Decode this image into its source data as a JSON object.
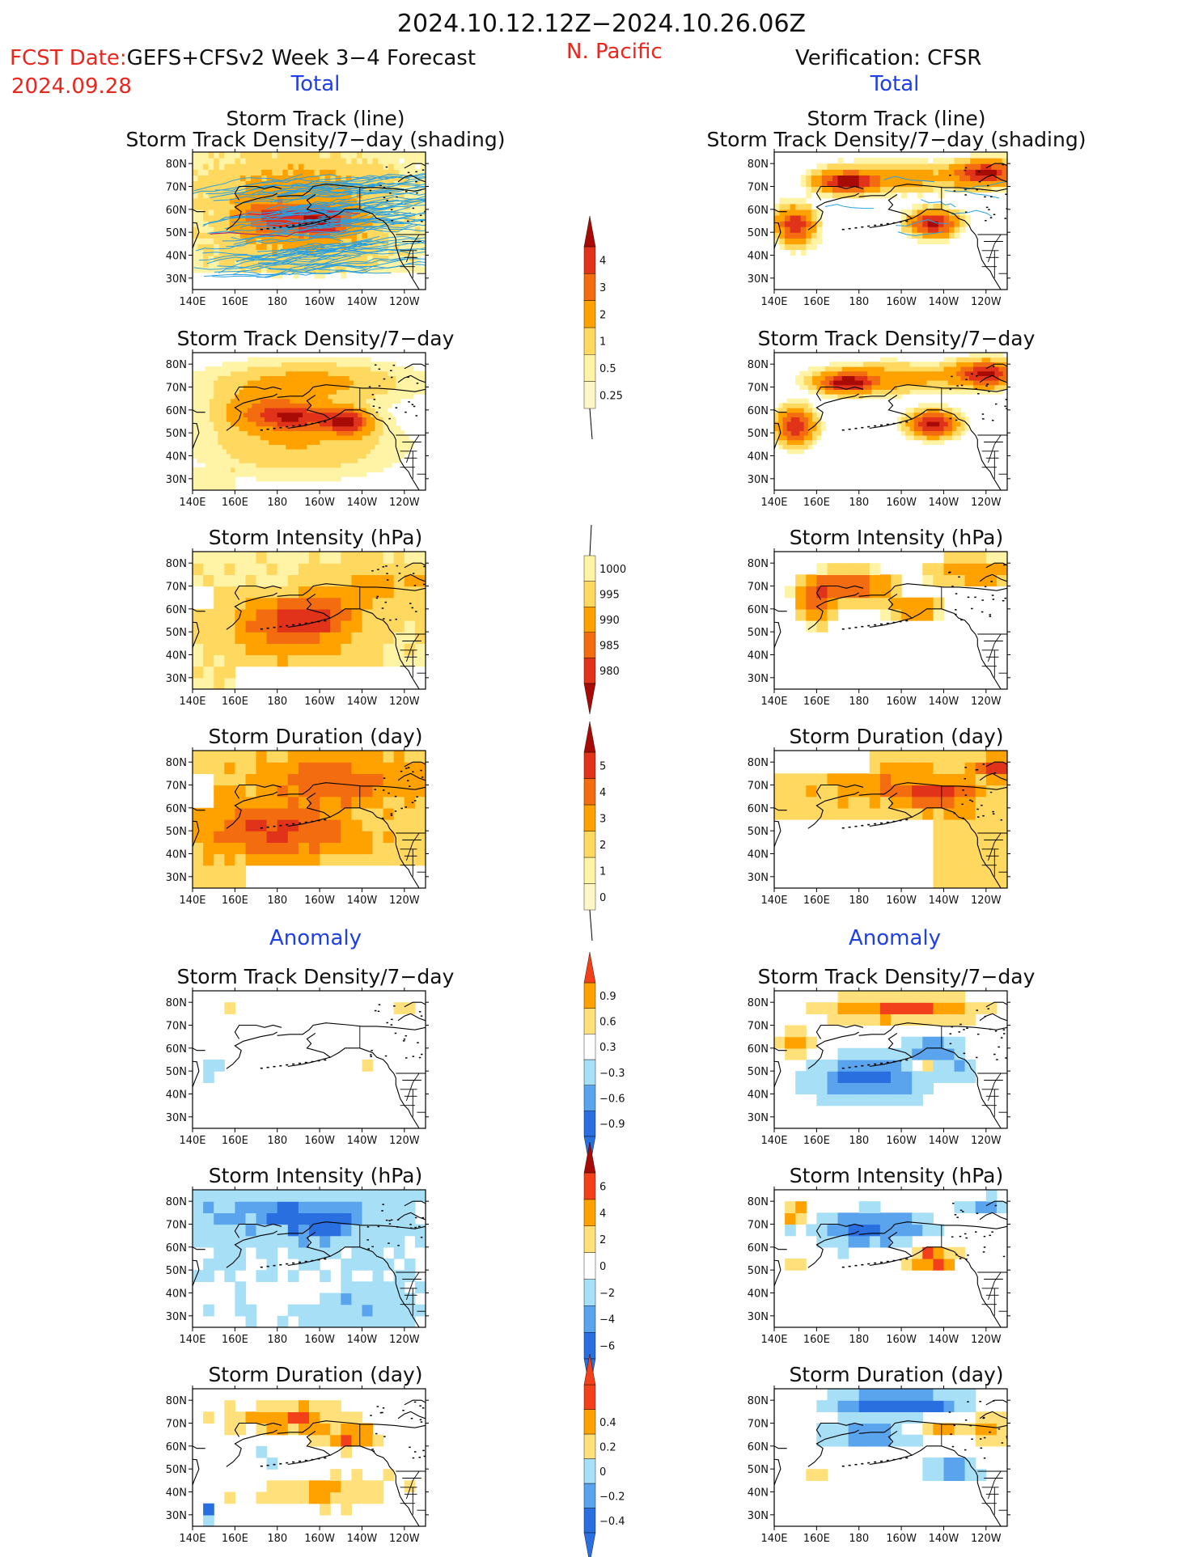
{
  "header": {
    "period": "2024.10.12.12Z−2024.10.26.06Z",
    "fcst_date_label": "FCST Date:",
    "fcst_product": "GEFS+CFSv2 Week 3−4 Forecast",
    "fcst_date": "2024.09.28",
    "region": "N. Pacific",
    "verification": "Verification: CFSR"
  },
  "sections": {
    "total_label": "Total",
    "anomaly_label": "Anomaly"
  },
  "panel_titles": {
    "track_line": "Storm Track (line)",
    "track_density_shading": "Storm Track Density/7−day (shading)",
    "track_density": "Storm Track Density/7−day",
    "intensity": "Storm Intensity (hPa)",
    "duration": "Storm Duration (day)"
  },
  "axes": {
    "x_ticks": [
      "140E",
      "160E",
      "180",
      "160W",
      "140W",
      "120W"
    ],
    "y_ticks": [
      "80N",
      "70N",
      "60N",
      "50N",
      "40N",
      "30N"
    ]
  },
  "colors": {
    "seq": [
      "#fff3a6",
      "#ffd860",
      "#ffa200",
      "#f36d10",
      "#e1321a",
      "#a80b05"
    ],
    "div": [
      "#2a6fe0",
      "#5aa4ee",
      "#a7e0f6",
      "#ffffff",
      "#ffe07a",
      "#ffa200",
      "#f2411a"
    ],
    "track_line": "#2aa0e0",
    "track_line_red": "#c2185b"
  },
  "colorbars": [
    {
      "name": "density-total",
      "levels": [
        "0.25",
        "0.5",
        "1",
        "2",
        "3",
        "4"
      ]
    },
    {
      "name": "intensity-total",
      "levels": [
        "1000",
        "995",
        "990",
        "985",
        "980"
      ]
    },
    {
      "name": "duration-total",
      "levels": [
        "0",
        "1",
        "2",
        "3",
        "4",
        "5"
      ]
    },
    {
      "name": "density-anom",
      "levels": [
        "−0.9",
        "−0.6",
        "−0.3",
        "0.3",
        "0.6",
        "0.9"
      ]
    },
    {
      "name": "intensity-anom",
      "levels": [
        "−6",
        "−4",
        "−2",
        "0",
        "2",
        "4",
        "6"
      ]
    },
    {
      "name": "duration-anom",
      "levels": [
        "−0.4",
        "−0.2",
        "0",
        "0.2",
        "0.4"
      ]
    }
  ],
  "chart_data": [
    {
      "type": "heatmap",
      "title": "Storm Track Density/7−day (shading)",
      "panel": "forecast-total",
      "blobs": [
        {
          "lon": 200,
          "lat": 55,
          "level": 4
        },
        {
          "lon": 180,
          "lat": 58,
          "level": 3
        },
        {
          "lon": 190,
          "lat": 72,
          "level": 1
        }
      ],
      "grid": false
    },
    {
      "type": "heatmap",
      "title": "Storm Track Density/7−day (shading)",
      "panel": "verification-total",
      "blobs": [
        {
          "lon": 150,
          "lat": 53,
          "level": 4
        },
        {
          "lon": 174,
          "lat": 73,
          "level": 4
        },
        {
          "lon": 215,
          "lat": 53,
          "level": 4
        },
        {
          "lon": 240,
          "lat": 76,
          "level": 4
        }
      ]
    },
    {
      "type": "heatmap",
      "title": "Storm Track Density/7−day",
      "panel": "forecast-total",
      "blobs": [
        {
          "lon": 213,
          "lat": 55,
          "level": 4
        },
        {
          "lon": 190,
          "lat": 57,
          "level": 3
        }
      ]
    },
    {
      "type": "heatmap",
      "title": "Storm Intensity (hPa)",
      "panel": "forecast-total",
      "blobs": [
        {
          "lon": 195,
          "lat": 57,
          "value": 985
        }
      ]
    },
    {
      "type": "heatmap",
      "title": "Storm Duration (day)",
      "panel": "forecast-total",
      "blobs": [
        {
          "lon": 180,
          "lat": 50,
          "value": 4
        }
      ]
    }
  ]
}
